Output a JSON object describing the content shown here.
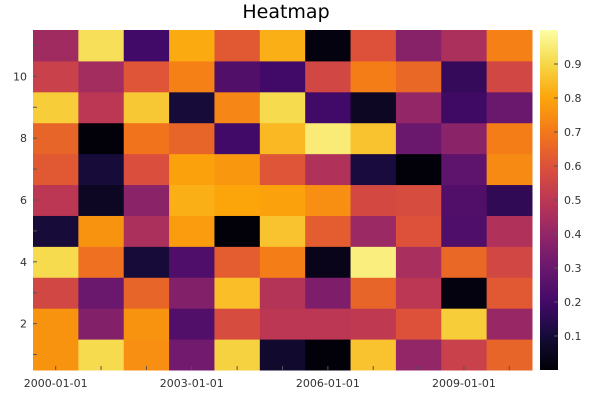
{
  "chart_data": {
    "type": "heatmap",
    "title": "Heatmap",
    "xlabel": "",
    "ylabel": "",
    "colormap": "inferno",
    "x": [
      "2000-01-01",
      "2001-01-01",
      "2002-01-01",
      "2003-01-01",
      "2004-01-01",
      "2005-01-01",
      "2006-01-01",
      "2007-01-01",
      "2008-01-01",
      "2009-01-01",
      "2010-01-01"
    ],
    "x_tick_labels": [
      "2000-01-01",
      "2003-01-01",
      "2006-01-01",
      "2009-01-01"
    ],
    "y": [
      1,
      2,
      3,
      4,
      5,
      6,
      7,
      8,
      9,
      10,
      11
    ],
    "y_tick_labels": [
      "2",
      "4",
      "6",
      "8",
      "10"
    ],
    "values": [
      [
        0.76,
        0.91,
        0.75,
        0.32,
        0.89,
        0.08,
        0.01,
        0.86,
        0.4,
        0.54,
        0.65
      ],
      [
        0.76,
        0.36,
        0.76,
        0.24,
        0.58,
        0.5,
        0.5,
        0.51,
        0.6,
        0.88,
        0.41
      ],
      [
        0.56,
        0.3,
        0.65,
        0.36,
        0.85,
        0.48,
        0.35,
        0.65,
        0.5,
        0.02,
        0.62
      ],
      [
        0.91,
        0.68,
        0.1,
        0.23,
        0.63,
        0.71,
        0.04,
        0.96,
        0.45,
        0.66,
        0.56
      ],
      [
        0.1,
        0.76,
        0.46,
        0.78,
        0.01,
        0.86,
        0.63,
        0.42,
        0.6,
        0.23,
        0.47
      ],
      [
        0.5,
        0.06,
        0.38,
        0.82,
        0.8,
        0.79,
        0.75,
        0.57,
        0.58,
        0.24,
        0.16
      ],
      [
        0.62,
        0.1,
        0.59,
        0.79,
        0.77,
        0.61,
        0.47,
        0.11,
        0.01,
        0.27,
        0.74
      ],
      [
        0.65,
        0.01,
        0.69,
        0.65,
        0.2,
        0.84,
        0.95,
        0.86,
        0.3,
        0.38,
        0.71
      ],
      [
        0.88,
        0.5,
        0.87,
        0.1,
        0.73,
        0.91,
        0.2,
        0.06,
        0.4,
        0.19,
        0.3
      ],
      [
        0.54,
        0.44,
        0.61,
        0.72,
        0.24,
        0.2,
        0.56,
        0.71,
        0.66,
        0.17,
        0.56
      ],
      [
        0.43,
        0.92,
        0.2,
        0.81,
        0.62,
        0.82,
        0.02,
        0.6,
        0.37,
        0.46,
        0.72
      ]
    ],
    "colorbar": {
      "range": [
        0,
        1
      ],
      "ticks": [
        "0.1",
        "0.2",
        "0.3",
        "0.4",
        "0.5",
        "0.6",
        "0.7",
        "0.8",
        "0.9"
      ]
    },
    "grid": false,
    "legend": "colorbar-right"
  }
}
